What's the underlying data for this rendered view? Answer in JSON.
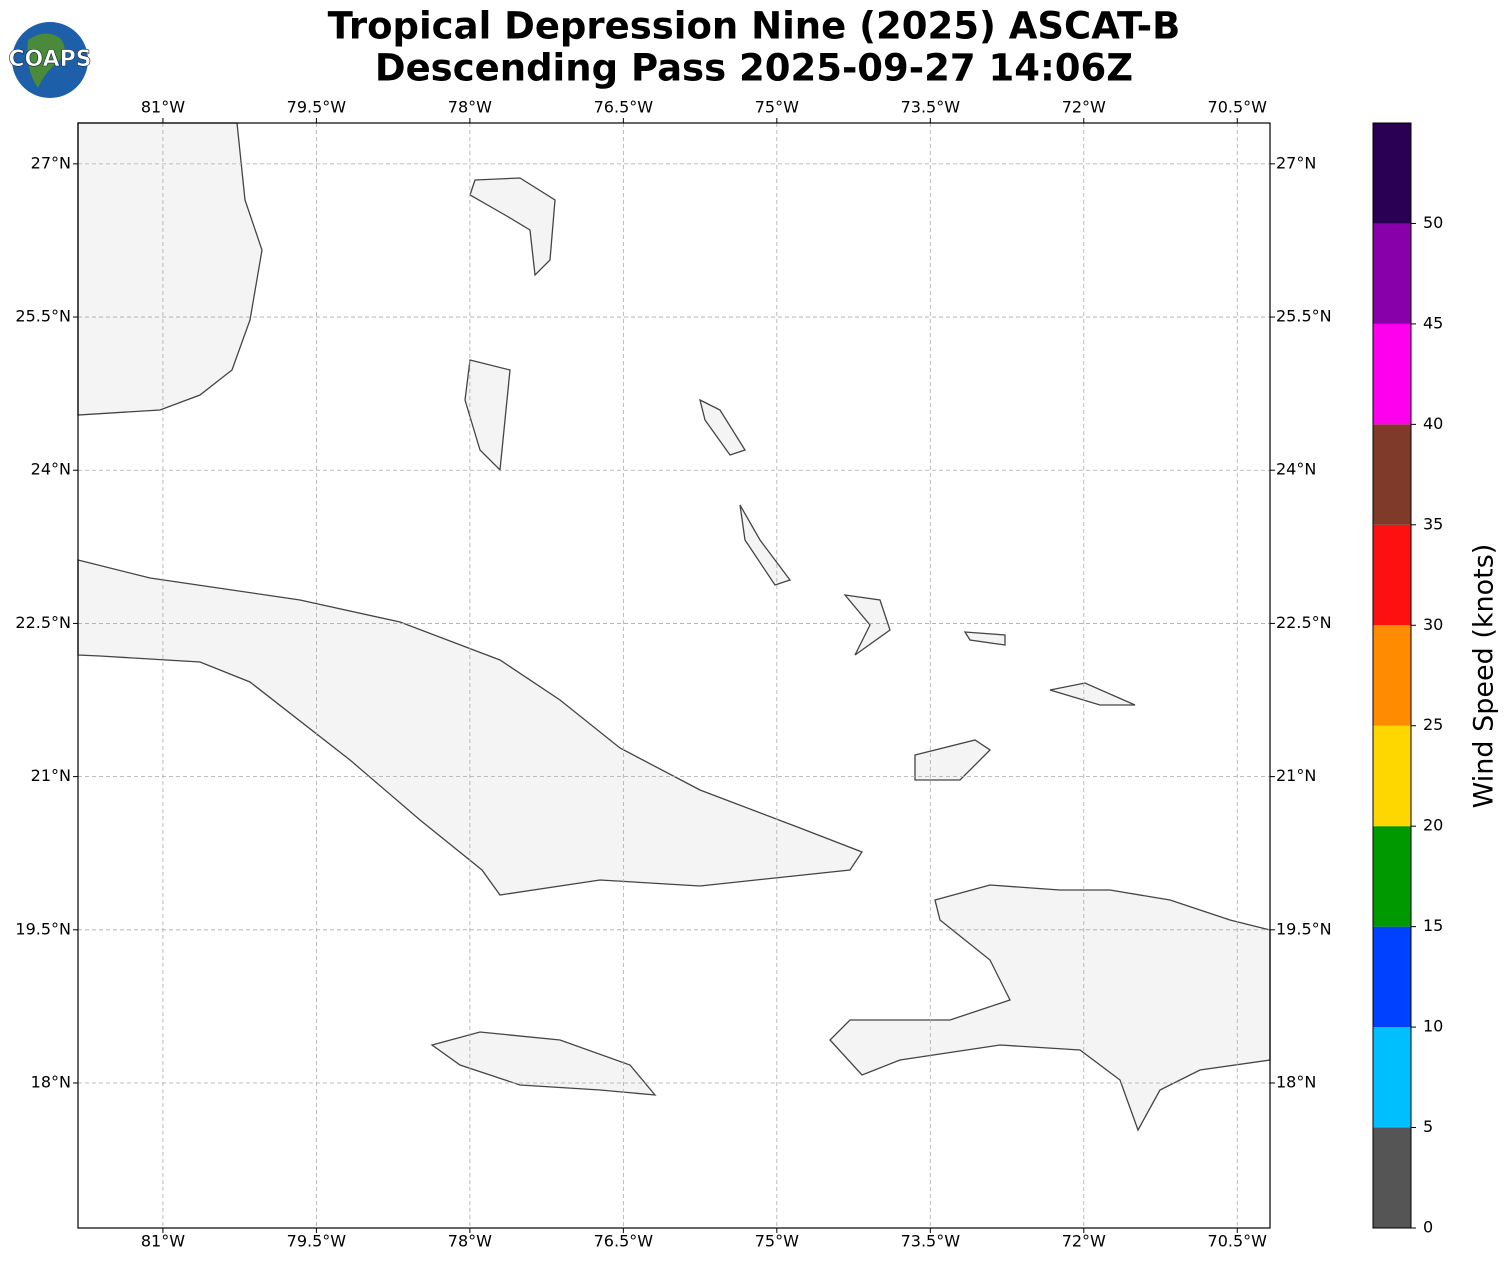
{
  "header": {
    "logo_text": "COAPS",
    "title_lines": [
      "Tropical Depression Nine (2025) ASCAT-B",
      "Descending Pass 2025-09-27 14:06Z"
    ]
  },
  "map": {
    "xlim": [
      -81.83,
      -70.18
    ],
    "ylim": [
      16.58,
      27.4
    ],
    "xticks": [
      {
        "value": -81,
        "label": "81°W"
      },
      {
        "value": -79.5,
        "label": "79.5°W"
      },
      {
        "value": -78,
        "label": "78°W"
      },
      {
        "value": -76.5,
        "label": "76.5°W"
      },
      {
        "value": -75,
        "label": "75°W"
      },
      {
        "value": -73.5,
        "label": "73.5°W"
      },
      {
        "value": -72,
        "label": "72°W"
      },
      {
        "value": -70.5,
        "label": "70.5°W"
      }
    ],
    "yticks": [
      {
        "value": 18,
        "label": "18°N"
      },
      {
        "value": 19.5,
        "label": "19.5°N"
      },
      {
        "value": 21,
        "label": "21°N"
      },
      {
        "value": 22.5,
        "label": "22.5°N"
      },
      {
        "value": 24,
        "label": "24°N"
      },
      {
        "value": 25.5,
        "label": "25.5°N"
      },
      {
        "value": 27,
        "label": "27°N"
      }
    ],
    "grid": true
  },
  "colorbar": {
    "label": "Wind Speed (knots)",
    "lim": [
      0,
      55
    ],
    "bins": [
      0,
      5,
      10,
      15,
      20,
      25,
      30,
      35,
      40,
      45,
      50,
      55
    ],
    "colors": [
      "#555555",
      "#00bfff",
      "#0040ff",
      "#009900",
      "#ffd700",
      "#ff8c00",
      "#ff1010",
      "#7f3a2a",
      "#ff00ee",
      "#8800aa",
      "#2a0055"
    ],
    "ticks": [
      0,
      5,
      10,
      15,
      20,
      25,
      30,
      35,
      40,
      45,
      50
    ]
  }
}
